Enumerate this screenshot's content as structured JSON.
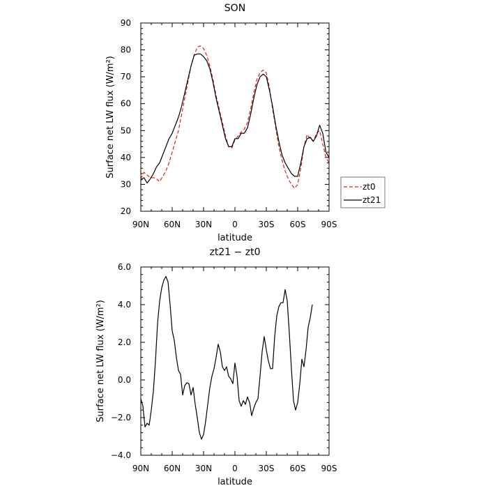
{
  "chart_data": [
    {
      "type": "line",
      "title": "SON",
      "xlabel": "latitude",
      "ylabel": "Surface net LW flux (W/m²)",
      "xlim": [
        90,
        -90
      ],
      "ylim": [
        20,
        90
      ],
      "x_ticks": [
        {
          "value": 90,
          "label": "90N"
        },
        {
          "value": 60,
          "label": "60N"
        },
        {
          "value": 30,
          "label": "30N"
        },
        {
          "value": 0,
          "label": "0"
        },
        {
          "value": -30,
          "label": "30S"
        },
        {
          "value": -60,
          "label": "60S"
        },
        {
          "value": -90,
          "label": "90S"
        }
      ],
      "y_ticks": [
        20,
        30,
        40,
        50,
        60,
        70,
        80,
        90
      ],
      "legend_position": "right",
      "series": [
        {
          "name": "zt0",
          "color": "#e8191a",
          "dash": "dashed",
          "points": [
            [
              90,
              32
            ],
            [
              87,
              34.5
            ],
            [
              84,
              33.5
            ],
            [
              81,
              32.5
            ],
            [
              78,
              32.5
            ],
            [
              75,
              32
            ],
            [
              72,
              31
            ],
            [
              69,
              33
            ],
            [
              66,
              35
            ],
            [
              63,
              38
            ],
            [
              60,
              42
            ],
            [
              57,
              46
            ],
            [
              54,
              50
            ],
            [
              51,
              56
            ],
            [
              48,
              62
            ],
            [
              45,
              68
            ],
            [
              42,
              74
            ],
            [
              39,
              78
            ],
            [
              36,
              81
            ],
            [
              33,
              81.5
            ],
            [
              30,
              80.5
            ],
            [
              27,
              78
            ],
            [
              24,
              74
            ],
            [
              21,
              69
            ],
            [
              18,
              63
            ],
            [
              15,
              58
            ],
            [
              12,
              53
            ],
            [
              9,
              48
            ],
            [
              6,
              44
            ],
            [
              3,
              43.5
            ],
            [
              0,
              46.5
            ],
            [
              -3,
              48
            ],
            [
              -6,
              49.5
            ],
            [
              -9,
              50.5
            ],
            [
              -12,
              53
            ],
            [
              -15,
              58
            ],
            [
              -18,
              64
            ],
            [
              -21,
              69
            ],
            [
              -24,
              71.5
            ],
            [
              -27,
              72.5
            ],
            [
              -30,
              71.5
            ],
            [
              -33,
              66
            ],
            [
              -36,
              58
            ],
            [
              -39,
              51
            ],
            [
              -42,
              44
            ],
            [
              -45,
              39
            ],
            [
              -48,
              35
            ],
            [
              -51,
              32
            ],
            [
              -54,
              30
            ],
            [
              -57,
              28.5
            ],
            [
              -60,
              30
            ],
            [
              -63,
              36
            ],
            [
              -66,
              44
            ],
            [
              -69,
              48.5
            ],
            [
              -72,
              47
            ],
            [
              -75,
              46
            ],
            [
              -78,
              49
            ],
            [
              -81,
              50
            ],
            [
              -84,
              45
            ],
            [
              -87,
              40
            ],
            [
              -90,
              38
            ]
          ]
        },
        {
          "name": "zt21",
          "color": "#000000",
          "dash": "solid",
          "points": [
            [
              90,
              31.5
            ],
            [
              87,
              32.5
            ],
            [
              84,
              30.5
            ],
            [
              81,
              32
            ],
            [
              78,
              34
            ],
            [
              75,
              36.5
            ],
            [
              72,
              38
            ],
            [
              69,
              41
            ],
            [
              66,
              44
            ],
            [
              63,
              47
            ],
            [
              60,
              49
            ],
            [
              57,
              52
            ],
            [
              54,
              55
            ],
            [
              51,
              59
            ],
            [
              48,
              64
            ],
            [
              45,
              69
            ],
            [
              42,
              74
            ],
            [
              39,
              78
            ],
            [
              36,
              78.5
            ],
            [
              33,
              78.5
            ],
            [
              30,
              77.5
            ],
            [
              27,
              76
            ],
            [
              24,
              73
            ],
            [
              21,
              68
            ],
            [
              18,
              62
            ],
            [
              15,
              57
            ],
            [
              12,
              52
            ],
            [
              9,
              47
            ],
            [
              6,
              44
            ],
            [
              3,
              44
            ],
            [
              0,
              47
            ],
            [
              -3,
              47
            ],
            [
              -6,
              49
            ],
            [
              -9,
              49
            ],
            [
              -12,
              51
            ],
            [
              -15,
              56
            ],
            [
              -18,
              62
            ],
            [
              -21,
              67
            ],
            [
              -24,
              70
            ],
            [
              -27,
              71
            ],
            [
              -30,
              70
            ],
            [
              -33,
              65
            ],
            [
              -36,
              59
            ],
            [
              -39,
              52
            ],
            [
              -42,
              46
            ],
            [
              -45,
              41
            ],
            [
              -48,
              38
            ],
            [
              -51,
              36
            ],
            [
              -54,
              34
            ],
            [
              -57,
              33
            ],
            [
              -60,
              33
            ],
            [
              -63,
              38
            ],
            [
              -66,
              44
            ],
            [
              -69,
              47
            ],
            [
              -72,
              47.5
            ],
            [
              -75,
              46
            ],
            [
              -78,
              48
            ],
            [
              -81,
              52
            ],
            [
              -84,
              49
            ],
            [
              -87,
              42
            ],
            [
              -90,
              40
            ]
          ]
        }
      ]
    },
    {
      "type": "line",
      "title": "zt21 − zt0",
      "xlabel": "latitude",
      "ylabel": "Surface net LW flux (W/m²)",
      "xlim": [
        90,
        -90
      ],
      "ylim": [
        -4,
        6
      ],
      "x_ticks": [
        {
          "value": 90,
          "label": "90N"
        },
        {
          "value": 60,
          "label": "60N"
        },
        {
          "value": 30,
          "label": "30N"
        },
        {
          "value": 0,
          "label": "0"
        },
        {
          "value": -30,
          "label": "30S"
        },
        {
          "value": -60,
          "label": "60S"
        },
        {
          "value": -90,
          "label": "90S"
        }
      ],
      "y_ticks": [
        {
          "value": -4,
          "label": "−4.0"
        },
        {
          "value": -2,
          "label": "−2.0"
        },
        {
          "value": 0,
          "label": "0.0"
        },
        {
          "value": 2,
          "label": "2.0"
        },
        {
          "value": 4,
          "label": "4.0"
        },
        {
          "value": 6,
          "label": "6.0"
        }
      ],
      "series": [
        {
          "color": "#000000",
          "dash": "solid",
          "points": [
            [
              90,
              -1
            ],
            [
              88,
              -1.4
            ],
            [
              86,
              -2.5
            ],
            [
              84,
              -2.3
            ],
            [
              82,
              -2.4
            ],
            [
              80,
              -1.6
            ],
            [
              78,
              -0.6
            ],
            [
              76,
              1
            ],
            [
              74,
              3
            ],
            [
              72,
              4.2
            ],
            [
              70,
              4.9
            ],
            [
              68,
              5.3
            ],
            [
              66,
              5.5
            ],
            [
              64,
              5.2
            ],
            [
              62,
              4
            ],
            [
              60,
              2.6
            ],
            [
              58,
              2.1
            ],
            [
              56,
              1.2
            ],
            [
              54,
              0.5
            ],
            [
              52,
              0.3
            ],
            [
              50,
              -0.8
            ],
            [
              48,
              -0.3
            ],
            [
              46,
              -0.15
            ],
            [
              44,
              -0.2
            ],
            [
              42,
              -0.8
            ],
            [
              40,
              -0.4
            ],
            [
              38,
              -1.3
            ],
            [
              36,
              -2
            ],
            [
              34,
              -2.8
            ],
            [
              32,
              -3.15
            ],
            [
              30,
              -2.9
            ],
            [
              28,
              -2.2
            ],
            [
              26,
              -1.3
            ],
            [
              24,
              -0.4
            ],
            [
              22,
              0.2
            ],
            [
              20,
              0.6
            ],
            [
              18,
              1.2
            ],
            [
              16,
              1.9
            ],
            [
              14,
              1.5
            ],
            [
              12,
              0.7
            ],
            [
              10,
              0.5
            ],
            [
              8,
              0.7
            ],
            [
              6,
              0.2
            ],
            [
              4,
              0.05
            ],
            [
              2,
              -0.2
            ],
            [
              0,
              0.9
            ],
            [
              -2,
              0.2
            ],
            [
              -4,
              -1.1
            ],
            [
              -6,
              -1.4
            ],
            [
              -8,
              -1.1
            ],
            [
              -10,
              -1.3
            ],
            [
              -12,
              -0.9
            ],
            [
              -14,
              -1.2
            ],
            [
              -16,
              -1.9
            ],
            [
              -18,
              -1.5
            ],
            [
              -20,
              -1.2
            ],
            [
              -22,
              -1.0
            ],
            [
              -24,
              0.2
            ],
            [
              -26,
              1.5
            ],
            [
              -28,
              2.3
            ],
            [
              -30,
              1.6
            ],
            [
              -32,
              1
            ],
            [
              -34,
              0.6
            ],
            [
              -36,
              0.6
            ],
            [
              -38,
              2.3
            ],
            [
              -40,
              3.4
            ],
            [
              -42,
              3.9
            ],
            [
              -44,
              4.1
            ],
            [
              -46,
              4.1
            ],
            [
              -48,
              4.8
            ],
            [
              -50,
              4.2
            ],
            [
              -52,
              2.5
            ],
            [
              -54,
              0.6
            ],
            [
              -56,
              -1.1
            ],
            [
              -58,
              -1.6
            ],
            [
              -60,
              -1.2
            ],
            [
              -62,
              -0.2
            ],
            [
              -64,
              1.1
            ],
            [
              -66,
              0.7
            ],
            [
              -68,
              1.6
            ],
            [
              -70,
              2.8
            ],
            [
              -72,
              3.3
            ],
            [
              -74,
              4
            ]
          ]
        }
      ]
    }
  ]
}
